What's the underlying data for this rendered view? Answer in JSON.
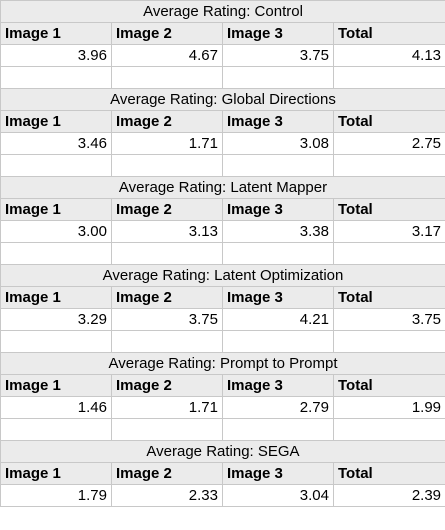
{
  "sections": [
    {
      "title": "Average Rating: Control",
      "headers": [
        "Image 1",
        "Image 2",
        "Image 3",
        "Total"
      ],
      "values": [
        "3.96",
        "4.67",
        "3.75",
        "4.13"
      ]
    },
    {
      "title": "Average Rating: Global Directions",
      "headers": [
        "Image 1",
        "Image 2",
        "Image 3",
        "Total"
      ],
      "values": [
        "3.46",
        "1.71",
        "3.08",
        "2.75"
      ]
    },
    {
      "title": "Average Rating: Latent Mapper",
      "headers": [
        "Image 1",
        "Image 2",
        "Image 3",
        "Total"
      ],
      "values": [
        "3.00",
        "3.13",
        "3.38",
        "3.17"
      ]
    },
    {
      "title": "Average Rating: Latent Optimization",
      "headers": [
        "Image 1",
        "Image 2",
        "Image 3",
        "Total"
      ],
      "values": [
        "3.29",
        "3.75",
        "4.21",
        "3.75"
      ]
    },
    {
      "title": "Average Rating: Prompt to Prompt",
      "headers": [
        "Image 1",
        "Image 2",
        "Image 3",
        "Total"
      ],
      "values": [
        "1.46",
        "1.71",
        "2.79",
        "1.99"
      ]
    },
    {
      "title": "Average Rating: SEGA",
      "headers": [
        "Image 1",
        "Image 2",
        "Image 3",
        "Total"
      ],
      "values": [
        "1.79",
        "2.33",
        "3.04",
        "2.39"
      ]
    }
  ]
}
